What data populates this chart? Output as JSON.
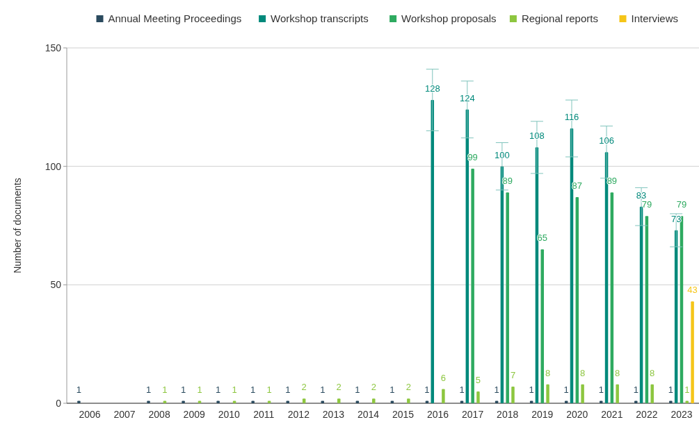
{
  "chart_data": {
    "type": "bar",
    "ylabel": "Number of documents",
    "categories": [
      "2006",
      "2007",
      "2008",
      "2009",
      "2010",
      "2011",
      "2012",
      "2013",
      "2014",
      "2015",
      "2016",
      "2017",
      "2018",
      "2019",
      "2020",
      "2021",
      "2022",
      "2023"
    ],
    "series": [
      {
        "name": "Annual Meeting Proceedings",
        "color": "#2a4a5e",
        "values": [
          1,
          null,
          1,
          1,
          1,
          1,
          1,
          1,
          1,
          1,
          1,
          1,
          1,
          1,
          1,
          1,
          1,
          1
        ]
      },
      {
        "name": "Workshop transcripts",
        "color": "#00897b",
        "values": [
          null,
          null,
          null,
          null,
          null,
          null,
          null,
          null,
          null,
          null,
          128,
          124,
          100,
          108,
          116,
          106,
          83,
          73
        ],
        "errors": [
          null,
          null,
          null,
          null,
          null,
          null,
          null,
          null,
          null,
          null,
          13,
          12,
          10,
          11,
          12,
          11,
          8,
          7
        ]
      },
      {
        "name": "Workshop proposals",
        "color": "#2eaa60",
        "values": [
          null,
          null,
          null,
          null,
          null,
          null,
          null,
          null,
          null,
          null,
          null,
          99,
          89,
          65,
          87,
          89,
          79,
          79
        ]
      },
      {
        "name": "Regional reports",
        "color": "#8dc63f",
        "values": [
          null,
          null,
          1,
          1,
          1,
          1,
          2,
          2,
          2,
          2,
          6,
          5,
          7,
          8,
          8,
          8,
          8,
          1
        ]
      },
      {
        "name": "Interviews",
        "color": "#f5c518",
        "values": [
          null,
          null,
          null,
          null,
          null,
          null,
          null,
          null,
          null,
          null,
          null,
          null,
          null,
          null,
          null,
          null,
          null,
          43
        ]
      }
    ],
    "ylim": [
      0,
      150
    ],
    "yticks": [
      0,
      50,
      100,
      150
    ],
    "grid": "y",
    "legend": "top",
    "data_labels": true
  }
}
